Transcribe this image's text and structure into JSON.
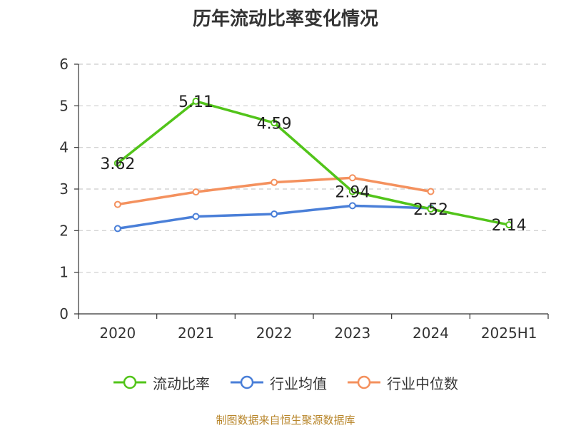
{
  "chart_data": {
    "type": "line",
    "title": "历年流动比率变化情况",
    "categories": [
      "2020",
      "2021",
      "2022",
      "2023",
      "2024",
      "2025H1"
    ],
    "ylim": [
      0,
      6
    ],
    "yticks": [
      0,
      1,
      2,
      3,
      4,
      5,
      6
    ],
    "grid": true,
    "legend_position": "bottom",
    "series": [
      {
        "name": "流动比率",
        "color": "#52c41a",
        "values": [
          3.62,
          5.11,
          4.59,
          2.94,
          2.52,
          2.14
        ],
        "labels": [
          "3.62",
          "5.11",
          "4.59",
          "2.94",
          "2.52",
          "2.14"
        ]
      },
      {
        "name": "行业均值",
        "color": "#4a7fd8",
        "values": [
          2.05,
          2.34,
          2.4,
          2.6,
          2.54,
          null
        ]
      },
      {
        "name": "行业中位数",
        "color": "#f4915e",
        "values": [
          2.63,
          2.93,
          3.16,
          3.27,
          2.94,
          null
        ]
      }
    ]
  },
  "source_note": "制图数据来自恒生聚源数据库"
}
